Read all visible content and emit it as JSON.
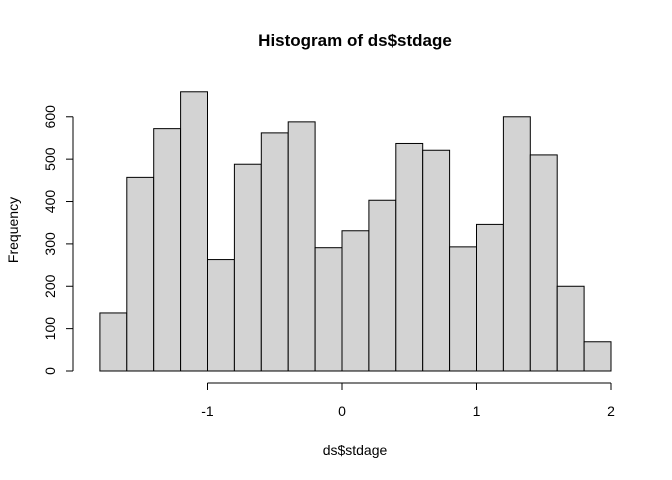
{
  "chart_data": {
    "type": "bar",
    "title": "Histogram of ds$stdage",
    "xlabel": "ds$stdage",
    "ylabel": "Frequency",
    "bin_edges": [
      -1.8,
      -1.6,
      -1.4,
      -1.2,
      -1.0,
      -0.8,
      -0.6,
      -0.4,
      -0.2,
      0.0,
      0.2,
      0.4,
      0.6,
      0.8,
      1.0,
      1.2,
      1.4,
      1.6,
      1.8,
      2.0
    ],
    "values": [
      137,
      457,
      572,
      659,
      263,
      488,
      562,
      588,
      291,
      331,
      403,
      537,
      521,
      293,
      346,
      600,
      510,
      200,
      69
    ],
    "xticks": [
      -1,
      0,
      1,
      2
    ],
    "xtick_labels": [
      "-1",
      "0",
      "1",
      "2"
    ],
    "yticks": [
      0,
      100,
      200,
      300,
      400,
      500,
      600
    ],
    "ytick_labels": [
      "0",
      "100",
      "200",
      "300",
      "400",
      "500",
      "600"
    ],
    "xlim": [
      -1.8,
      2.0
    ],
    "ylim": [
      0,
      660
    ],
    "bar_fill": "#d3d3d3",
    "bar_stroke": "#000000",
    "grid": false,
    "legend": "none"
  }
}
